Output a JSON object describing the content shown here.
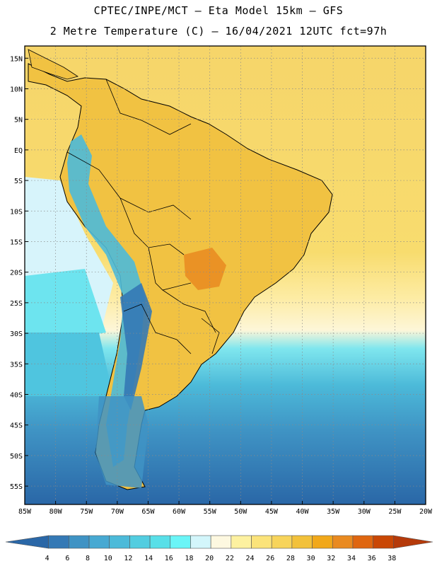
{
  "header": {
    "line1": "CPTEC/INPE/MCT –  Eta Model 15km – GFS",
    "line2": "2 Metre Temperature (C) – 16/04/2021 12UTC fct=97h"
  },
  "map": {
    "lon_range": [
      -85,
      -20
    ],
    "lat_range": [
      -58,
      17
    ],
    "lat_ticks": [
      {
        "value": 15,
        "label": "15N"
      },
      {
        "value": 10,
        "label": "10N"
      },
      {
        "value": 5,
        "label": "5N"
      },
      {
        "value": 0,
        "label": "EQ"
      },
      {
        "value": -5,
        "label": "5S"
      },
      {
        "value": -10,
        "label": "10S"
      },
      {
        "value": -15,
        "label": "15S"
      },
      {
        "value": -20,
        "label": "20S"
      },
      {
        "value": -25,
        "label": "25S"
      },
      {
        "value": -30,
        "label": "30S"
      },
      {
        "value": -35,
        "label": "35S"
      },
      {
        "value": -40,
        "label": "40S"
      },
      {
        "value": -45,
        "label": "45S"
      },
      {
        "value": -50,
        "label": "50S"
      },
      {
        "value": -55,
        "label": "55S"
      }
    ],
    "lon_ticks": [
      {
        "value": -85,
        "label": "85W"
      },
      {
        "value": -80,
        "label": "80W"
      },
      {
        "value": -75,
        "label": "75W"
      },
      {
        "value": -70,
        "label": "70W"
      },
      {
        "value": -65,
        "label": "65W"
      },
      {
        "value": -60,
        "label": "60W"
      },
      {
        "value": -55,
        "label": "55W"
      },
      {
        "value": -50,
        "label": "50W"
      },
      {
        "value": -45,
        "label": "45W"
      },
      {
        "value": -40,
        "label": "40W"
      },
      {
        "value": -35,
        "label": "35W"
      },
      {
        "value": -30,
        "label": "30W"
      },
      {
        "value": -25,
        "label": "25W"
      },
      {
        "value": -20,
        "label": "20W"
      }
    ]
  },
  "colorbar": {
    "unit": "C",
    "labels": [
      "4",
      "6",
      "8",
      "10",
      "12",
      "14",
      "16",
      "18",
      "20",
      "22",
      "24",
      "26",
      "28",
      "30",
      "32",
      "34",
      "36",
      "38"
    ],
    "colors": [
      "#2a67a7",
      "#3479b5",
      "#3f93c4",
      "#47a9d2",
      "#4cbad9",
      "#52cde0",
      "#58dfe8",
      "#6af5f7",
      "#d3f6fb",
      "#fdf8e0",
      "#fdf1a0",
      "#fbe37a",
      "#f7d45b",
      "#f2c13a",
      "#f1a81a",
      "#e98a20",
      "#df6610",
      "#c94705",
      "#b53a0a"
    ]
  }
}
